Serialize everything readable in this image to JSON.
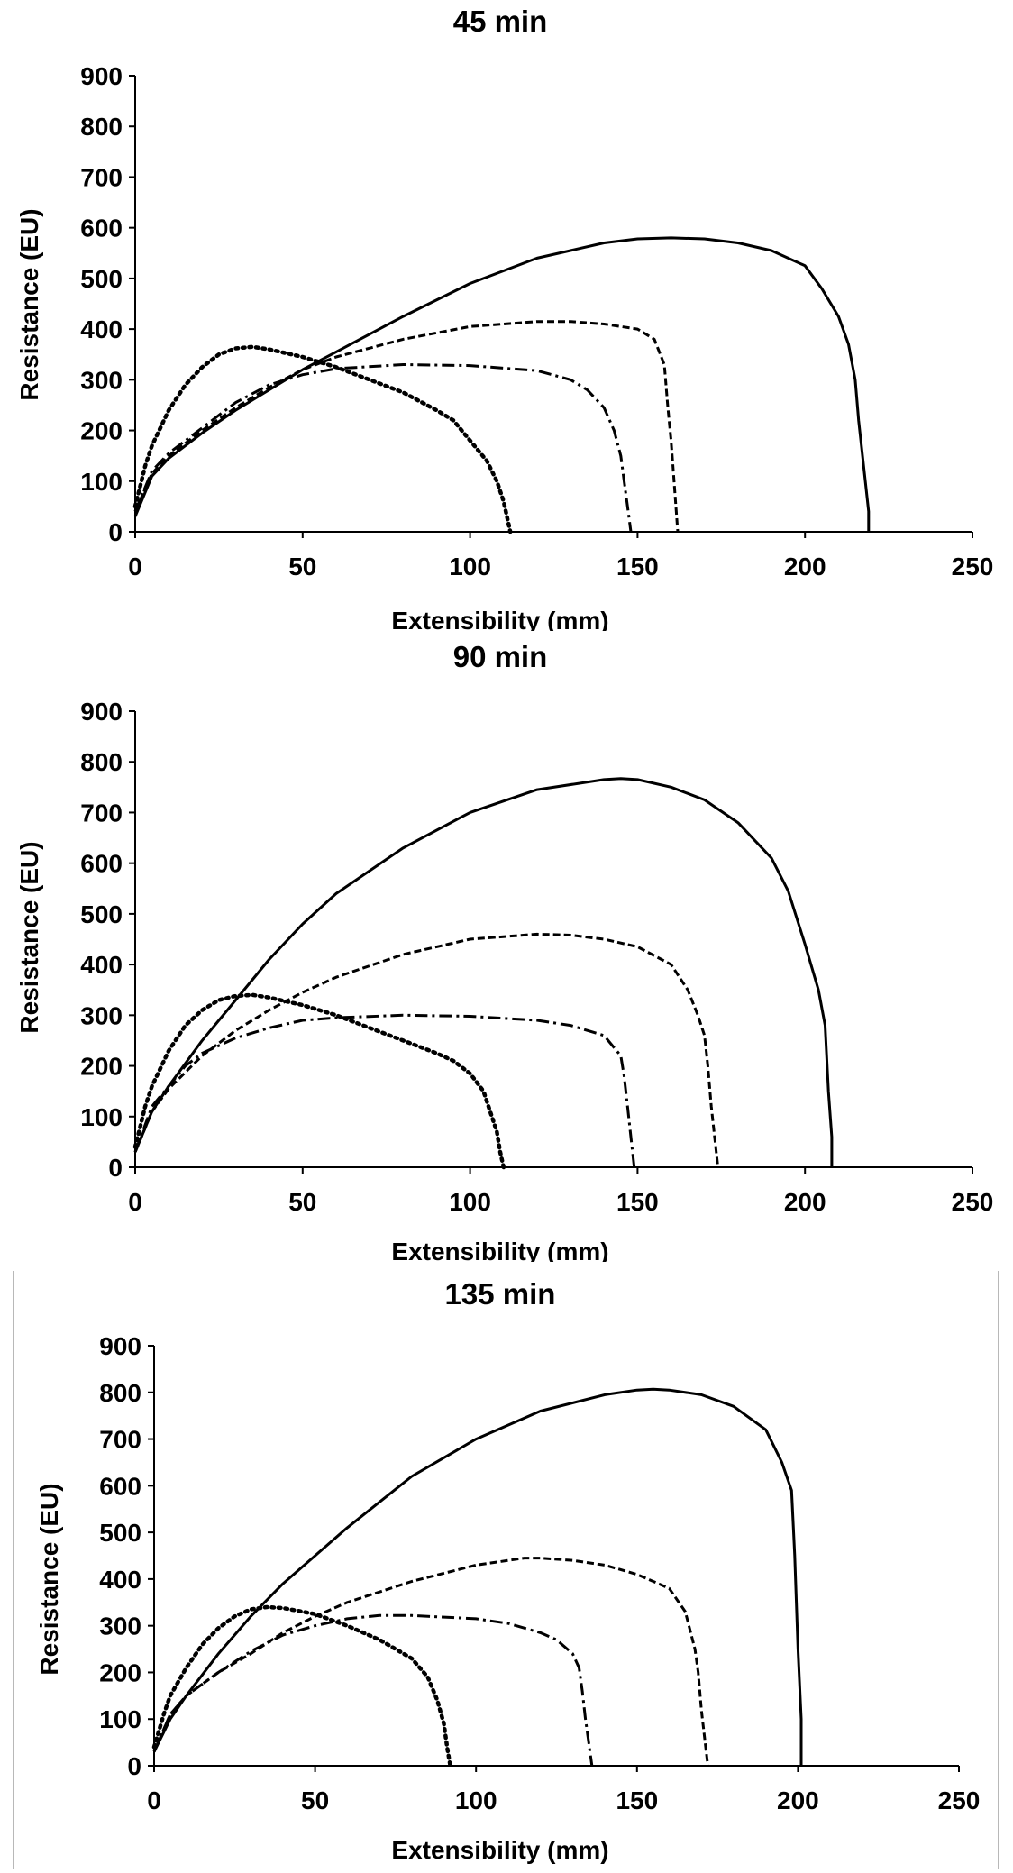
{
  "chart_data": [
    {
      "type": "line",
      "title": "45 min",
      "xlabel": "Extensibility (mm)",
      "ylabel": "Resistance (EU)",
      "xlim": [
        0,
        250
      ],
      "ylim": [
        0,
        900
      ],
      "xticks": [
        0,
        50,
        100,
        150,
        200,
        250
      ],
      "yticks": [
        0,
        100,
        200,
        300,
        400,
        500,
        600,
        700,
        800,
        900
      ],
      "grid": false,
      "legend": "none",
      "series": [
        {
          "name": "solid",
          "style": "solid",
          "x": [
            0,
            5,
            10,
            20,
            30,
            40,
            50,
            60,
            80,
            100,
            120,
            140,
            150,
            160,
            170,
            180,
            190,
            200,
            205,
            210,
            213,
            215,
            216,
            217,
            218,
            219,
            219
          ],
          "y": [
            30,
            110,
            145,
            195,
            240,
            280,
            320,
            355,
            425,
            490,
            540,
            570,
            578,
            580,
            578,
            570,
            555,
            525,
            480,
            425,
            370,
            300,
            220,
            160,
            100,
            40,
            0
          ]
        },
        {
          "name": "dashed",
          "style": "dashed",
          "x": [
            0,
            5,
            10,
            20,
            30,
            40,
            50,
            60,
            80,
            100,
            120,
            130,
            140,
            150,
            155,
            158,
            159,
            160,
            161,
            162
          ],
          "y": [
            40,
            115,
            150,
            200,
            245,
            285,
            320,
            345,
            380,
            405,
            415,
            415,
            410,
            400,
            380,
            330,
            250,
            180,
            90,
            0
          ]
        },
        {
          "name": "dash-dot",
          "style": "dashdot",
          "x": [
            0,
            5,
            10,
            20,
            30,
            40,
            50,
            60,
            80,
            100,
            120,
            130,
            135,
            140,
            143,
            145,
            146,
            147,
            148
          ],
          "y": [
            40,
            120,
            155,
            205,
            255,
            290,
            310,
            322,
            330,
            328,
            318,
            300,
            280,
            245,
            200,
            150,
            100,
            50,
            0
          ]
        },
        {
          "name": "dotted",
          "style": "dotted",
          "x": [
            0,
            3,
            5,
            10,
            15,
            20,
            25,
            30,
            35,
            40,
            50,
            60,
            70,
            80,
            90,
            95,
            100,
            105,
            108,
            110,
            111,
            112
          ],
          "y": [
            50,
            130,
            170,
            240,
            290,
            325,
            350,
            362,
            365,
            360,
            345,
            325,
            300,
            275,
            240,
            220,
            180,
            140,
            100,
            60,
            30,
            0
          ]
        }
      ]
    },
    {
      "type": "line",
      "title": "90 min",
      "xlabel": "Extensibility (mm)",
      "ylabel": "Resistance (EU)",
      "xlim": [
        0,
        250
      ],
      "ylim": [
        0,
        900
      ],
      "xticks": [
        0,
        50,
        100,
        150,
        200,
        250
      ],
      "yticks": [
        0,
        100,
        200,
        300,
        400,
        500,
        600,
        700,
        800,
        900
      ],
      "grid": false,
      "legend": "none",
      "series": [
        {
          "name": "solid",
          "style": "solid",
          "x": [
            0,
            5,
            10,
            20,
            30,
            40,
            50,
            60,
            80,
            100,
            120,
            140,
            145,
            150,
            160,
            170,
            180,
            190,
            195,
            200,
            204,
            206,
            207,
            208,
            208
          ],
          "y": [
            30,
            110,
            160,
            250,
            330,
            410,
            480,
            540,
            630,
            700,
            745,
            765,
            767,
            765,
            750,
            725,
            680,
            610,
            545,
            440,
            350,
            280,
            150,
            60,
            0
          ]
        },
        {
          "name": "dashed",
          "style": "dashed",
          "x": [
            0,
            5,
            10,
            20,
            30,
            40,
            50,
            60,
            80,
            100,
            120,
            130,
            140,
            150,
            160,
            165,
            168,
            170,
            171,
            172,
            173,
            174
          ],
          "y": [
            30,
            110,
            155,
            220,
            270,
            310,
            345,
            375,
            420,
            450,
            460,
            458,
            450,
            435,
            400,
            350,
            300,
            260,
            200,
            120,
            60,
            0
          ]
        },
        {
          "name": "dash-dot",
          "style": "dashdot",
          "x": [
            0,
            5,
            10,
            15,
            20,
            30,
            40,
            50,
            60,
            80,
            100,
            120,
            130,
            140,
            145,
            146,
            147,
            148,
            149
          ],
          "y": [
            30,
            120,
            160,
            200,
            225,
            255,
            275,
            290,
            295,
            300,
            298,
            290,
            280,
            260,
            220,
            180,
            120,
            60,
            0
          ]
        },
        {
          "name": "dotted",
          "style": "dotted",
          "x": [
            0,
            3,
            5,
            10,
            15,
            20,
            25,
            30,
            35,
            40,
            50,
            60,
            70,
            80,
            90,
            95,
            100,
            104,
            106,
            108,
            109,
            110
          ],
          "y": [
            40,
            120,
            160,
            230,
            280,
            310,
            330,
            338,
            340,
            335,
            320,
            300,
            275,
            250,
            225,
            210,
            185,
            150,
            110,
            70,
            30,
            0
          ]
        }
      ]
    },
    {
      "type": "line",
      "title": "135 min",
      "xlabel": "Extensibility (mm)",
      "ylabel": "Resistance (EU)",
      "xlim": [
        0,
        250
      ],
      "ylim": [
        0,
        900
      ],
      "xticks": [
        0,
        50,
        100,
        150,
        200,
        250
      ],
      "yticks": [
        0,
        100,
        200,
        300,
        400,
        500,
        600,
        700,
        800,
        900
      ],
      "grid": false,
      "legend": "none",
      "series": [
        {
          "name": "solid",
          "style": "solid",
          "x": [
            0,
            5,
            10,
            20,
            30,
            40,
            50,
            60,
            80,
            100,
            120,
            140,
            150,
            155,
            160,
            170,
            180,
            190,
            195,
            198,
            199,
            200,
            201,
            201
          ],
          "y": [
            30,
            100,
            150,
            240,
            320,
            390,
            450,
            510,
            620,
            700,
            760,
            795,
            805,
            807,
            805,
            795,
            770,
            720,
            650,
            590,
            450,
            250,
            100,
            0
          ]
        },
        {
          "name": "dashed",
          "style": "dashed",
          "x": [
            0,
            5,
            10,
            20,
            30,
            40,
            50,
            60,
            80,
            100,
            115,
            120,
            130,
            140,
            150,
            160,
            165,
            168,
            169,
            170,
            171,
            172
          ],
          "y": [
            30,
            110,
            150,
            200,
            240,
            285,
            320,
            350,
            395,
            430,
            445,
            445,
            440,
            430,
            410,
            380,
            330,
            250,
            200,
            120,
            60,
            0
          ]
        },
        {
          "name": "dash-dot",
          "style": "dashdot",
          "x": [
            0,
            5,
            10,
            20,
            30,
            40,
            50,
            60,
            70,
            80,
            100,
            110,
            120,
            125,
            130,
            132,
            133,
            134,
            135,
            136
          ],
          "y": [
            30,
            110,
            150,
            200,
            245,
            280,
            300,
            315,
            322,
            322,
            315,
            305,
            285,
            270,
            240,
            210,
            160,
            100,
            50,
            0
          ]
        },
        {
          "name": "dotted",
          "style": "dotted",
          "x": [
            0,
            3,
            5,
            10,
            15,
            20,
            25,
            30,
            35,
            40,
            50,
            60,
            70,
            80,
            85,
            88,
            90,
            91,
            92
          ],
          "y": [
            40,
            110,
            150,
            210,
            260,
            295,
            320,
            335,
            340,
            338,
            325,
            300,
            270,
            230,
            190,
            140,
            90,
            40,
            0
          ]
        }
      ]
    }
  ]
}
